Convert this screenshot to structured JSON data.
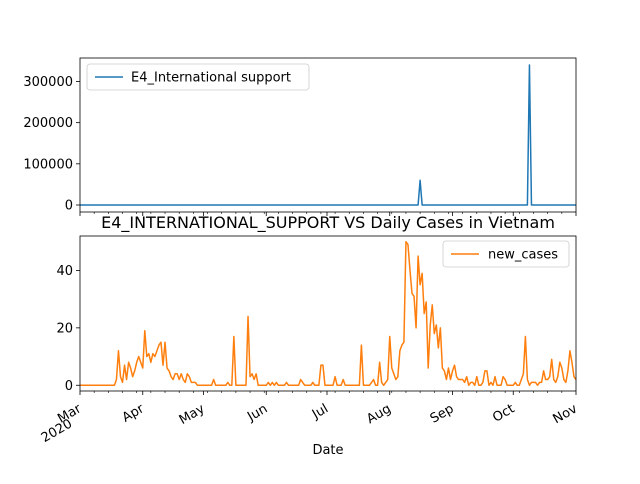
{
  "chart_data": [
    {
      "type": "line",
      "title": "",
      "xlabel": "",
      "ylabel": "",
      "ylim": [
        -17000,
        357000
      ],
      "yticks": [
        0,
        100000,
        200000,
        300000
      ],
      "ytick_labels": [
        "0",
        "100000",
        "200000",
        "300000"
      ],
      "legend": "top-left",
      "series": [
        {
          "name": "E4_International support",
          "color": "#1f77b4",
          "points": [
            [
              "2020-03-01",
              0
            ],
            [
              "2020-08-15",
              0
            ],
            [
              "2020-08-16",
              60000
            ],
            [
              "2020-08-17",
              0
            ],
            [
              "2020-10-08",
              0
            ],
            [
              "2020-10-09",
              340000
            ],
            [
              "2020-10-10",
              0
            ],
            [
              "2020-11-01",
              0
            ]
          ]
        }
      ]
    },
    {
      "type": "line",
      "title": "E4_INTERNATIONAL_SUPPORT VS Daily Cases in Vietnam",
      "xlabel": "Date",
      "ylabel": "",
      "ylim": [
        -2,
        52
      ],
      "yticks": [
        0,
        20,
        40
      ],
      "ytick_labels": [
        "0",
        "20",
        "40"
      ],
      "xticks": [
        {
          "date": "2020-03-01",
          "label": "Mar",
          "sub": "2020"
        },
        {
          "date": "2020-04-01",
          "label": "Apr",
          "sub": ""
        },
        {
          "date": "2020-05-01",
          "label": "May",
          "sub": ""
        },
        {
          "date": "2020-06-01",
          "label": "Jun",
          "sub": ""
        },
        {
          "date": "2020-07-01",
          "label": "Jul",
          "sub": ""
        },
        {
          "date": "2020-08-01",
          "label": "Aug",
          "sub": ""
        },
        {
          "date": "2020-09-01",
          "label": "Sep",
          "sub": ""
        },
        {
          "date": "2020-10-01",
          "label": "Oct",
          "sub": ""
        },
        {
          "date": "2020-11-01",
          "label": "Nov",
          "sub": ""
        }
      ],
      "legend": "top-right",
      "series": [
        {
          "name": "new_cases",
          "color": "#ff7f0e",
          "points": [
            [
              "2020-03-01",
              0
            ],
            [
              "2020-03-18",
              0
            ],
            [
              "2020-03-19",
              2
            ],
            [
              "2020-03-20",
              12
            ],
            [
              "2020-03-21",
              3
            ],
            [
              "2020-03-22",
              1
            ],
            [
              "2020-03-23",
              7
            ],
            [
              "2020-03-24",
              2
            ],
            [
              "2020-03-25",
              8
            ],
            [
              "2020-03-26",
              6
            ],
            [
              "2020-03-27",
              3
            ],
            [
              "2020-03-28",
              5
            ],
            [
              "2020-03-29",
              8
            ],
            [
              "2020-03-30",
              10
            ],
            [
              "2020-03-31",
              8
            ],
            [
              "2020-04-01",
              6
            ],
            [
              "2020-04-02",
              19
            ],
            [
              "2020-04-03",
              10
            ],
            [
              "2020-04-04",
              11
            ],
            [
              "2020-04-05",
              8
            ],
            [
              "2020-04-06",
              11
            ],
            [
              "2020-04-07",
              10
            ],
            [
              "2020-04-08",
              12
            ],
            [
              "2020-04-09",
              14
            ],
            [
              "2020-04-10",
              15
            ],
            [
              "2020-04-11",
              7
            ],
            [
              "2020-04-12",
              15
            ],
            [
              "2020-04-13",
              6
            ],
            [
              "2020-04-14",
              5
            ],
            [
              "2020-04-15",
              3
            ],
            [
              "2020-04-16",
              2
            ],
            [
              "2020-04-17",
              4
            ],
            [
              "2020-04-18",
              4
            ],
            [
              "2020-04-19",
              2
            ],
            [
              "2020-04-20",
              4
            ],
            [
              "2020-04-21",
              2
            ],
            [
              "2020-04-22",
              1
            ],
            [
              "2020-04-23",
              4
            ],
            [
              "2020-04-24",
              3
            ],
            [
              "2020-04-25",
              1
            ],
            [
              "2020-04-26",
              1
            ],
            [
              "2020-04-27",
              1
            ],
            [
              "2020-04-28",
              0
            ],
            [
              "2020-05-05",
              0
            ],
            [
              "2020-05-06",
              2
            ],
            [
              "2020-05-07",
              0
            ],
            [
              "2020-05-12",
              0
            ],
            [
              "2020-05-13",
              1
            ],
            [
              "2020-05-14",
              0
            ],
            [
              "2020-05-15",
              0
            ],
            [
              "2020-05-16",
              17
            ],
            [
              "2020-05-17",
              0
            ],
            [
              "2020-05-22",
              0
            ],
            [
              "2020-05-23",
              24
            ],
            [
              "2020-05-24",
              3
            ],
            [
              "2020-05-25",
              4
            ],
            [
              "2020-05-26",
              2
            ],
            [
              "2020-05-27",
              4
            ],
            [
              "2020-05-28",
              0
            ],
            [
              "2020-06-01",
              0
            ],
            [
              "2020-06-02",
              1
            ],
            [
              "2020-06-03",
              0
            ],
            [
              "2020-06-04",
              1
            ],
            [
              "2020-06-05",
              0
            ],
            [
              "2020-06-06",
              1
            ],
            [
              "2020-06-07",
              0
            ],
            [
              "2020-06-10",
              0
            ],
            [
              "2020-06-11",
              1
            ],
            [
              "2020-06-12",
              0
            ],
            [
              "2020-06-17",
              0
            ],
            [
              "2020-06-18",
              2
            ],
            [
              "2020-06-19",
              1
            ],
            [
              "2020-06-20",
              0
            ],
            [
              "2020-06-23",
              0
            ],
            [
              "2020-06-24",
              1
            ],
            [
              "2020-06-25",
              0
            ],
            [
              "2020-06-27",
              0
            ],
            [
              "2020-06-28",
              7
            ],
            [
              "2020-06-29",
              7
            ],
            [
              "2020-06-30",
              0
            ],
            [
              "2020-07-04",
              0
            ],
            [
              "2020-07-05",
              3
            ],
            [
              "2020-07-06",
              0
            ],
            [
              "2020-07-08",
              0
            ],
            [
              "2020-07-09",
              2
            ],
            [
              "2020-07-10",
              0
            ],
            [
              "2020-07-17",
              0
            ],
            [
              "2020-07-18",
              14
            ],
            [
              "2020-07-19",
              0
            ],
            [
              "2020-07-22",
              0
            ],
            [
              "2020-07-23",
              1
            ],
            [
              "2020-07-24",
              2
            ],
            [
              "2020-07-25",
              0
            ],
            [
              "2020-07-26",
              0
            ],
            [
              "2020-07-27",
              8
            ],
            [
              "2020-07-28",
              1
            ],
            [
              "2020-07-29",
              0
            ],
            [
              "2020-07-30",
              1
            ],
            [
              "2020-07-31",
              2
            ],
            [
              "2020-08-01",
              17
            ],
            [
              "2020-08-02",
              6
            ],
            [
              "2020-08-03",
              4
            ],
            [
              "2020-08-04",
              2
            ],
            [
              "2020-08-05",
              3
            ],
            [
              "2020-08-06",
              12
            ],
            [
              "2020-08-07",
              14
            ],
            [
              "2020-08-08",
              15
            ],
            [
              "2020-08-09",
              50
            ],
            [
              "2020-08-10",
              49
            ],
            [
              "2020-08-11",
              40
            ],
            [
              "2020-08-12",
              32
            ],
            [
              "2020-08-13",
              31
            ],
            [
              "2020-08-14",
              20
            ],
            [
              "2020-08-15",
              45
            ],
            [
              "2020-08-16",
              35
            ],
            [
              "2020-08-17",
              39
            ],
            [
              "2020-08-18",
              25
            ],
            [
              "2020-08-19",
              29
            ],
            [
              "2020-08-20",
              6
            ],
            [
              "2020-08-21",
              21
            ],
            [
              "2020-08-22",
              28
            ],
            [
              "2020-08-23",
              18
            ],
            [
              "2020-08-24",
              21
            ],
            [
              "2020-08-25",
              13
            ],
            [
              "2020-08-26",
              20
            ],
            [
              "2020-08-27",
              6
            ],
            [
              "2020-08-28",
              5
            ],
            [
              "2020-08-29",
              2
            ],
            [
              "2020-08-30",
              6
            ],
            [
              "2020-08-31",
              2
            ],
            [
              "2020-09-01",
              5
            ],
            [
              "2020-09-02",
              7
            ],
            [
              "2020-09-03",
              3
            ],
            [
              "2020-09-04",
              2
            ],
            [
              "2020-09-05",
              2
            ],
            [
              "2020-09-06",
              2
            ],
            [
              "2020-09-07",
              1
            ],
            [
              "2020-09-08",
              3
            ],
            [
              "2020-09-09",
              0
            ],
            [
              "2020-09-10",
              1
            ],
            [
              "2020-09-11",
              1
            ],
            [
              "2020-09-12",
              0
            ],
            [
              "2020-09-13",
              3
            ],
            [
              "2020-09-14",
              0
            ],
            [
              "2020-09-15",
              0
            ],
            [
              "2020-09-16",
              1
            ],
            [
              "2020-09-17",
              5
            ],
            [
              "2020-09-18",
              5
            ],
            [
              "2020-09-19",
              0
            ],
            [
              "2020-09-20",
              1
            ],
            [
              "2020-09-21",
              0
            ],
            [
              "2020-09-22",
              3
            ],
            [
              "2020-09-23",
              0
            ],
            [
              "2020-09-25",
              0
            ],
            [
              "2020-09-26",
              3
            ],
            [
              "2020-09-27",
              2
            ],
            [
              "2020-09-28",
              0
            ],
            [
              "2020-10-01",
              0
            ],
            [
              "2020-10-02",
              1
            ],
            [
              "2020-10-03",
              0
            ],
            [
              "2020-10-04",
              0
            ],
            [
              "2020-10-05",
              2
            ],
            [
              "2020-10-06",
              4
            ],
            [
              "2020-10-07",
              17
            ],
            [
              "2020-10-08",
              2
            ],
            [
              "2020-10-09",
              0
            ],
            [
              "2020-10-10",
              1
            ],
            [
              "2020-10-11",
              1
            ],
            [
              "2020-10-12",
              1
            ],
            [
              "2020-10-13",
              0
            ],
            [
              "2020-10-14",
              1
            ],
            [
              "2020-10-15",
              1
            ],
            [
              "2020-10-16",
              5
            ],
            [
              "2020-10-17",
              2
            ],
            [
              "2020-10-18",
              2
            ],
            [
              "2020-10-19",
              3
            ],
            [
              "2020-10-20",
              9
            ],
            [
              "2020-10-21",
              2
            ],
            [
              "2020-10-22",
              1
            ],
            [
              "2020-10-23",
              3
            ],
            [
              "2020-10-24",
              8
            ],
            [
              "2020-10-25",
              6
            ],
            [
              "2020-10-26",
              2
            ],
            [
              "2020-10-27",
              1
            ],
            [
              "2020-10-28",
              5
            ],
            [
              "2020-10-29",
              12
            ],
            [
              "2020-10-30",
              8
            ],
            [
              "2020-10-31",
              3
            ],
            [
              "2020-11-01",
              2
            ]
          ]
        }
      ]
    }
  ]
}
